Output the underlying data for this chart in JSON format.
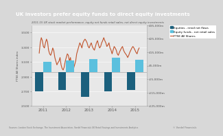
{
  "title": "UK investors prefer equity funds to direct equity investments",
  "subtitle": "2011-15 UK stock market performance, equity net funds retail sales, net direct equity investments",
  "title_bg": "#5bc8d2",
  "years": [
    "2011",
    "2012",
    "2013",
    "2014",
    "2015"
  ],
  "equities_net_flows": [
    -14000,
    -13000,
    -18000,
    -14000,
    -13000
  ],
  "equity_funds_net_sales": [
    8000,
    9000,
    10000,
    11000,
    9500
  ],
  "ftse_y": [
    3220,
    3360,
    3430,
    3390,
    3310,
    3290,
    3360,
    3410,
    3370,
    3260,
    3210,
    3190,
    3230,
    3290,
    3250,
    3160,
    3110,
    3060,
    3090,
    3110,
    3160,
    3060,
    3010,
    2990,
    3030,
    3110,
    3160,
    3210,
    3190,
    3110,
    3160,
    3060,
    3030,
    3010,
    3060,
    3110,
    3210,
    3260,
    3310,
    3360,
    3330,
    3290,
    3360,
    3390,
    3410,
    3390,
    3360,
    3310,
    3290,
    3330,
    3360,
    3310,
    3280,
    3260,
    3310,
    3360,
    3390,
    3330,
    3290,
    3310,
    3360,
    3390,
    3430,
    3390,
    3360,
    3310,
    3330,
    3360,
    3290,
    3260,
    3210,
    3260,
    3310,
    3290,
    3260,
    3210,
    3190,
    3230,
    3260,
    3290,
    3310,
    3260,
    3230,
    3210,
    3190,
    3160,
    3190,
    3230,
    3260,
    3290,
    3310,
    3290,
    3260,
    3230,
    3210,
    3260,
    3290
  ],
  "bar_color_equities": "#1b607d",
  "bar_color_funds": "#5bc0de",
  "line_color": "#c0522a",
  "left_ylim": [
    2500,
    3600
  ],
  "left_yticks": [
    2500,
    2700,
    2900,
    3100,
    3300,
    3500
  ],
  "right_ylim": [
    -25000,
    35000
  ],
  "right_yticks": [
    -25000,
    -15000,
    -5000,
    5000,
    15000,
    25000,
    35000
  ],
  "right_tick_labels": [
    "-£25,000m",
    "-£15,000m",
    "-£5,000m",
    "£5,000m",
    "£15,000m",
    "£25,000m",
    "£35,000m"
  ],
  "bar_width": 0.35,
  "bar_positions": [
    0,
    1,
    2,
    3,
    4
  ],
  "source_text": "Sources: London Stock Exchange, The Investment Association, Vordel Financials UK Retail Savings and Investments Analytics",
  "watermark": "© Vordel Financials",
  "chart_bg": "#e8e8e8",
  "fig_bg": "#d8d8d8"
}
